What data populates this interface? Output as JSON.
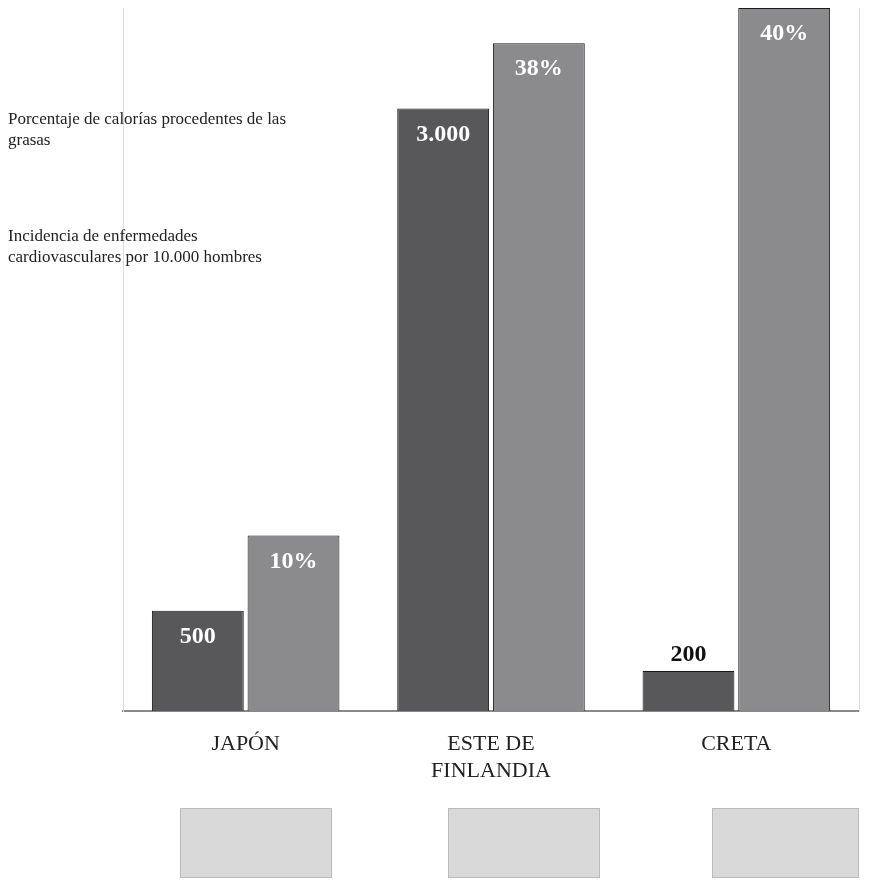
{
  "chart_data": {
    "type": "bar",
    "categories": [
      "JAPÓN",
      "ESTE DE FINLANDIA",
      "CRETA"
    ],
    "series": [
      {
        "name": "Incidencia de enfermedades cardiovasculares por 10.000 hombres",
        "color": "#58585a",
        "values": [
          500,
          3000,
          200
        ],
        "value_labels": [
          "500",
          "3.000",
          "200"
        ]
      },
      {
        "name": "Porcentaje de calorías procedentes de las grasas",
        "color": "#8b8b8d",
        "values": [
          10,
          38,
          40
        ],
        "value_labels": [
          "10%",
          "38%",
          "40%"
        ],
        "axis": "y2"
      }
    ],
    "ylim": [
      0,
      3500
    ],
    "y2lim": [
      0,
      40
    ],
    "grid": false,
    "legend": "top-left",
    "data_labels": true,
    "tick_labels": "x"
  }
}
